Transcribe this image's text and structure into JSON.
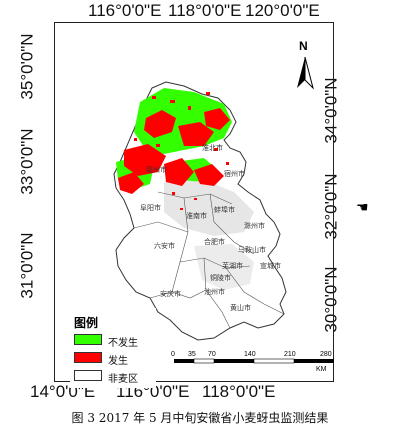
{
  "coords": {
    "top": [
      "116°0'0\"E",
      "118°0'0\"E",
      "120°0'0\"E"
    ],
    "bottom": [
      "14°0'0\"E",
      "116°0'0\"E",
      "118°0'0\"E"
    ],
    "left": [
      "35°0'0\"N",
      "33°0'0\"N",
      "31°0'0\"N"
    ],
    "right": [
      "34°0'0\"N",
      "32°0'0\"N",
      "30°0'0\"N"
    ]
  },
  "north": "N",
  "legend": {
    "title": "图例",
    "items": [
      {
        "label": "不发生",
        "color": "#33ff00"
      },
      {
        "label": "发生",
        "color": "#ff0000"
      },
      {
        "label": "非麦区",
        "color": "#ffffff"
      }
    ]
  },
  "scale": {
    "ticks": [
      "0",
      "35",
      "70",
      "140",
      "210",
      "280"
    ],
    "unit": "KM"
  },
  "cities": [
    "淮北市",
    "宿州市",
    "亳州市",
    "阜阳市",
    "蚌埠市",
    "淮南市",
    "滁州市",
    "合肥市",
    "六安市",
    "马鞍山市",
    "芜湖市",
    "宣城市",
    "铜陵市",
    "池州市",
    "安庆市",
    "黄山市"
  ],
  "caption": "图 3 2017 年 5 月中旬安徽省小麦蚜虫监测结果",
  "colors": {
    "not_occur": "#33ff00",
    "occur": "#ff0000",
    "non_wheat": "#ffffff",
    "grey_area": "#d8d8d8"
  }
}
